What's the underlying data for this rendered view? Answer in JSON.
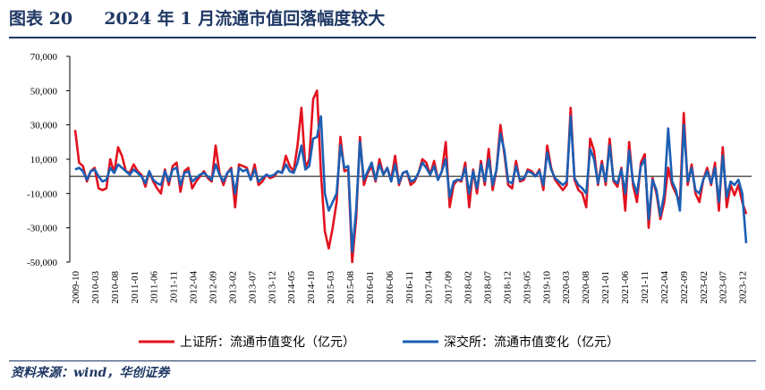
{
  "header": {
    "figure_no": "图表 20",
    "title": "2024 年 1 月流通市值回落幅度较大"
  },
  "footer": {
    "source": "资料来源：wind，华创证券"
  },
  "colors": {
    "series_sh": "#e3121f",
    "series_sz": "#1a5fb4",
    "title": "#1f3864"
  },
  "chart_data": {
    "type": "line",
    "title": "",
    "xlabel": "",
    "ylabel": "",
    "ylim": [
      -50000,
      70000
    ],
    "yticks": [
      70000,
      50000,
      30000,
      10000,
      -10000,
      -30000,
      -50000
    ],
    "ytick_labels": [
      "70,000",
      "50,000",
      "30,000",
      "10,000",
      "-10,000",
      "-30,000",
      "-50,000"
    ],
    "x_start": "2009-10",
    "x_end": "2024-01",
    "xtick_labels": [
      "2009-10",
      "2010-03",
      "2010-08",
      "2011-01",
      "2011-06",
      "2011-11",
      "2012-04",
      "2012-09",
      "2013-02",
      "2013-07",
      "2013-12",
      "2014-05",
      "2014-10",
      "2015-03",
      "2015-08",
      "2016-01",
      "2016-06",
      "2016-11",
      "2017-04",
      "2017-09",
      "2018-02",
      "2018-07",
      "2018-12",
      "2019-05",
      "2019-10",
      "2020-03",
      "2020-08",
      "2021-01",
      "2021-06",
      "2021-11",
      "2022-04",
      "2022-09",
      "2023-02",
      "2023-07",
      "2023-12"
    ],
    "legend_position": "bottom",
    "grid": false,
    "series": [
      {
        "name": "上证所：流通市值变化（亿元）",
        "values": [
          27000,
          8000,
          6000,
          -3000,
          3000,
          5000,
          -7000,
          -8000,
          -7000,
          10000,
          2000,
          17000,
          12000,
          3000,
          2000,
          7000,
          3000,
          1000,
          -6000,
          3000,
          -3000,
          -7000,
          -10000,
          4000,
          -5000,
          6000,
          8000,
          -9000,
          3000,
          5000,
          -7000,
          -3000,
          0,
          3000,
          -1000,
          -3000,
          18000,
          2000,
          -5000,
          2000,
          5000,
          -18000,
          7000,
          6000,
          5000,
          -2000,
          7000,
          -5000,
          -3000,
          1000,
          -1000,
          0,
          3000,
          2000,
          12000,
          6000,
          3000,
          18000,
          40000,
          5000,
          10000,
          45000,
          50000,
          2000,
          -32000,
          -42000,
          -30000,
          -15000,
          23000,
          3000,
          4000,
          -50000,
          -25000,
          23000,
          -5000,
          2000,
          6000,
          -3000,
          10000,
          1000,
          5000,
          -2000,
          12000,
          -5000,
          2000,
          3000,
          -5000,
          -3000,
          2000,
          10000,
          8000,
          1000,
          9000,
          -2000,
          3000,
          20000,
          -18000,
          -5000,
          -2000,
          -3000,
          8000,
          -18000,
          4000,
          -10000,
          9000,
          -5000,
          16000,
          -8000,
          4000,
          30000,
          13000,
          -5000,
          -7000,
          9000,
          -3000,
          -2000,
          4000,
          3000,
          0,
          4000,
          -8000,
          18000,
          5000,
          -2000,
          -5000,
          -8000,
          -5000,
          40000,
          -2000,
          -8000,
          -10000,
          -18000,
          22000,
          15000,
          -5000,
          9000,
          -5000,
          22000,
          -3000,
          -6000,
          5000,
          -20000,
          20000,
          -5000,
          -15000,
          8000,
          13000,
          -30000,
          -1000,
          -10000,
          -25000,
          -15000,
          5000,
          -5000,
          -10000,
          -15000,
          37000,
          -5000,
          7000,
          -10000,
          -15000,
          -2000,
          5000,
          -5000,
          8000,
          -20000,
          17000,
          -18000,
          -5000,
          -11000,
          -5000,
          -15000,
          -22000
        ]
      },
      {
        "name": "深交所：流通市值变化（亿元）",
        "values": [
          4000,
          5000,
          3000,
          -2000,
          3000,
          4000,
          0,
          -3000,
          -2000,
          5000,
          2000,
          7000,
          5000,
          3000,
          1000,
          4000,
          2000,
          0,
          -4000,
          3000,
          -2000,
          -4000,
          -5000,
          3000,
          -3000,
          4000,
          5000,
          -5000,
          2000,
          3000,
          -3000,
          -1000,
          1000,
          2000,
          0,
          -2000,
          7000,
          1000,
          -3000,
          2000,
          4000,
          -10000,
          5000,
          3000,
          4000,
          -2000,
          4000,
          -3000,
          -1000,
          1000,
          0,
          1000,
          3000,
          2000,
          7000,
          3000,
          2000,
          8000,
          18000,
          4000,
          6000,
          22000,
          23000,
          35000,
          -10000,
          -20000,
          -15000,
          -10000,
          18000,
          5000,
          6000,
          -44000,
          -20000,
          20000,
          -2000,
          3000,
          8000,
          -2000,
          7000,
          1000,
          5000,
          -3000,
          7000,
          -4000,
          2000,
          3000,
          -3000,
          -2000,
          2000,
          8000,
          5000,
          1000,
          6000,
          -2000,
          3000,
          10000,
          -12000,
          -3000,
          -2000,
          -2000,
          5000,
          -10000,
          3000,
          -7000,
          7000,
          -3000,
          10000,
          -5000,
          4000,
          25000,
          15000,
          -3000,
          -4000,
          6000,
          -2000,
          -1000,
          3000,
          2000,
          0,
          3000,
          -5000,
          14000,
          4000,
          -1000,
          -3000,
          -5000,
          -3000,
          35000,
          -1000,
          -5000,
          -7000,
          -10000,
          16000,
          10000,
          -4000,
          7000,
          -3000,
          18000,
          -2000,
          -4000,
          4000,
          -10000,
          15000,
          -3000,
          -10000,
          6000,
          10000,
          -25000,
          -2000,
          -8000,
          -23000,
          -10000,
          28000,
          -3000,
          -8000,
          -20000,
          30000,
          -3000,
          5000,
          -8000,
          -10000,
          -2000,
          3000,
          -4000,
          5000,
          -15000,
          12000,
          -12000,
          -3000,
          -5000,
          -2000,
          -10000,
          -39000
        ]
      }
    ]
  }
}
